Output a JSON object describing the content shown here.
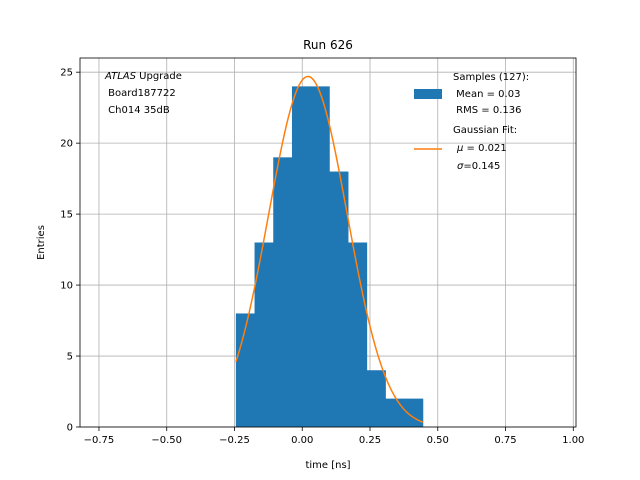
{
  "chart_data": {
    "type": "bar",
    "title": "Run 626",
    "xlabel": "time [ns]",
    "ylabel": "Entries",
    "xlim": [
      -0.82,
      1.01
    ],
    "ylim": [
      0,
      26
    ],
    "grid": true,
    "x_ticks": [
      -0.75,
      -0.5,
      -0.25,
      0.0,
      0.25,
      0.5,
      0.75,
      1.0
    ],
    "x_tick_labels": [
      "−0.75",
      "−0.50",
      "−0.25",
      "0.00",
      "0.25",
      "0.50",
      "0.75",
      "1.00"
    ],
    "y_ticks": [
      0,
      5,
      10,
      15,
      20,
      25
    ],
    "y_tick_labels": [
      "0",
      "5",
      "10",
      "15",
      "20",
      "25"
    ],
    "histogram": {
      "bin_edges": [
        -0.245,
        -0.176,
        -0.107,
        -0.038,
        0.031,
        0.1,
        0.169,
        0.238,
        0.307,
        0.376,
        0.445
      ],
      "counts": [
        8,
        13,
        19,
        24,
        24,
        18,
        13,
        4,
        2,
        2
      ],
      "color": "#1f77b4"
    },
    "fit": {
      "type": "gaussian",
      "mu": 0.021,
      "sigma": 0.145,
      "amplitude": 24.7,
      "x_range": [
        -0.245,
        0.445
      ],
      "color": "#ff7f0e"
    },
    "annotation": {
      "line1_italic": "ATLAS",
      "line1_rest": " Upgrade",
      "line2": " Board187722",
      "line3": " Ch014 35dB"
    },
    "legend": {
      "location": "upper right",
      "samples_line1": "Samples (127):",
      "samples_line2": " Mean = 0.03",
      "samples_line3": " RMS = 0.136",
      "fit_line1": "Gaussian Fit:",
      "fit_mu_symbol": "μ",
      "fit_mu_value": " = 0.021",
      "fit_sigma_symbol": "σ",
      "fit_sigma_value": "=0.145"
    }
  }
}
